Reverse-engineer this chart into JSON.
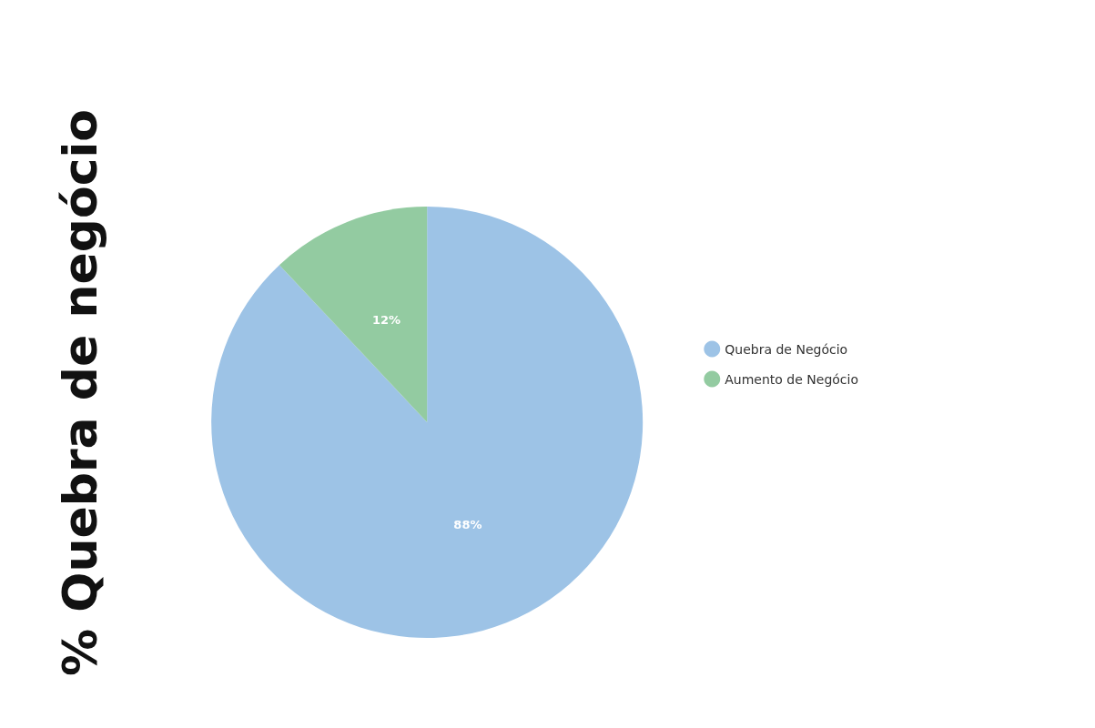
{
  "chart_data": {
    "type": "pie",
    "title": "% Quebra de negócio",
    "categories": [
      "Quebra de Negócio",
      "Aumento de Negócio"
    ],
    "values": [
      88,
      12
    ],
    "colors": [
      "#9dc3e6",
      "#93cba1"
    ],
    "value_labels": [
      "88%",
      "12%"
    ],
    "legend": "right"
  }
}
